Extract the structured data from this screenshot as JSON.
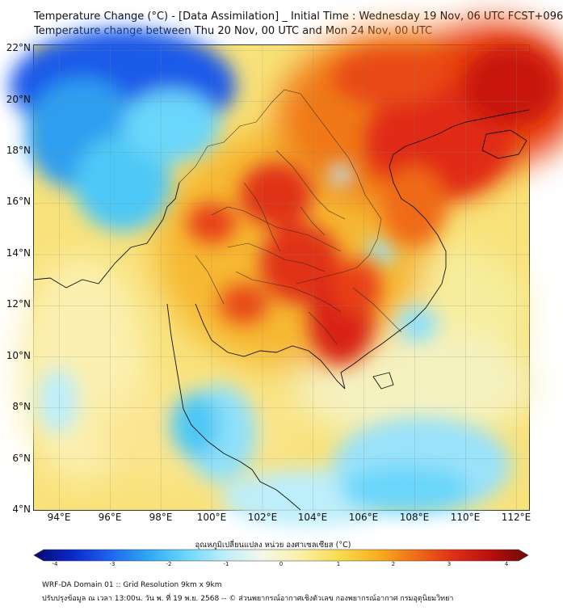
{
  "header": {
    "title_line1": "Temperature Change (°C) - [Data Assimilation] _ Initial Time : Wednesday 19 Nov, 06 UTC FCST+096",
    "title_line2": "Temperature change between Thu 20 Nov, 00 UTC and Mon 24 Nov, 00 UTC"
  },
  "map": {
    "lat_labels": [
      "22°N",
      "20°N",
      "18°N",
      "16°N",
      "14°N",
      "12°N",
      "10°N",
      "8°N",
      "6°N",
      "4°N"
    ],
    "lon_labels": [
      "94°E",
      "96°E",
      "98°E",
      "100°E",
      "102°E",
      "104°E",
      "106°E",
      "108°E",
      "110°E",
      "112°E"
    ],
    "lat_values": [
      22,
      20,
      18,
      16,
      14,
      12,
      10,
      8,
      6,
      4
    ],
    "lon_values": [
      94,
      96,
      98,
      100,
      102,
      104,
      106,
      108,
      110,
      112
    ],
    "extent": {
      "lon_min": 93,
      "lon_max": 112.5,
      "lat_min": 4,
      "lat_max": 22.2
    }
  },
  "colorbar": {
    "title": "อุณหภูมิเปลี่ยนแปลง หน่วย องศาเซลเซียส (°C)",
    "tick_labels": [
      "-4",
      "-3",
      "-2",
      "-1",
      "0",
      "1",
      "2",
      "3",
      "4"
    ],
    "tick_values": [
      -4,
      -3,
      -2,
      -1,
      0,
      1,
      2,
      3,
      4
    ],
    "colors": [
      "#08086e",
      "#0a28c8",
      "#1e64f0",
      "#2ea8f2",
      "#6ad6fa",
      "#bdeefb",
      "#f4f8e8",
      "#fbf0a8",
      "#f8dc50",
      "#f8b020",
      "#f07018",
      "#e03016",
      "#b8100e",
      "#6e0808"
    ]
  },
  "footer": {
    "line1": "WRF-DA Domain 01 :: Grid Resolution 9km x 9km",
    "line2": "ปรับปรุงข้อมูล ณ เวลา 13:00น. วัน พ. ที่ 19 พ.ย. 2568 -- © ส่วนพยากรณ์อากาศเชิงตัวเลข กองพยากรณ์อากาศ กรมอุตุนิยมวิทยา"
  }
}
